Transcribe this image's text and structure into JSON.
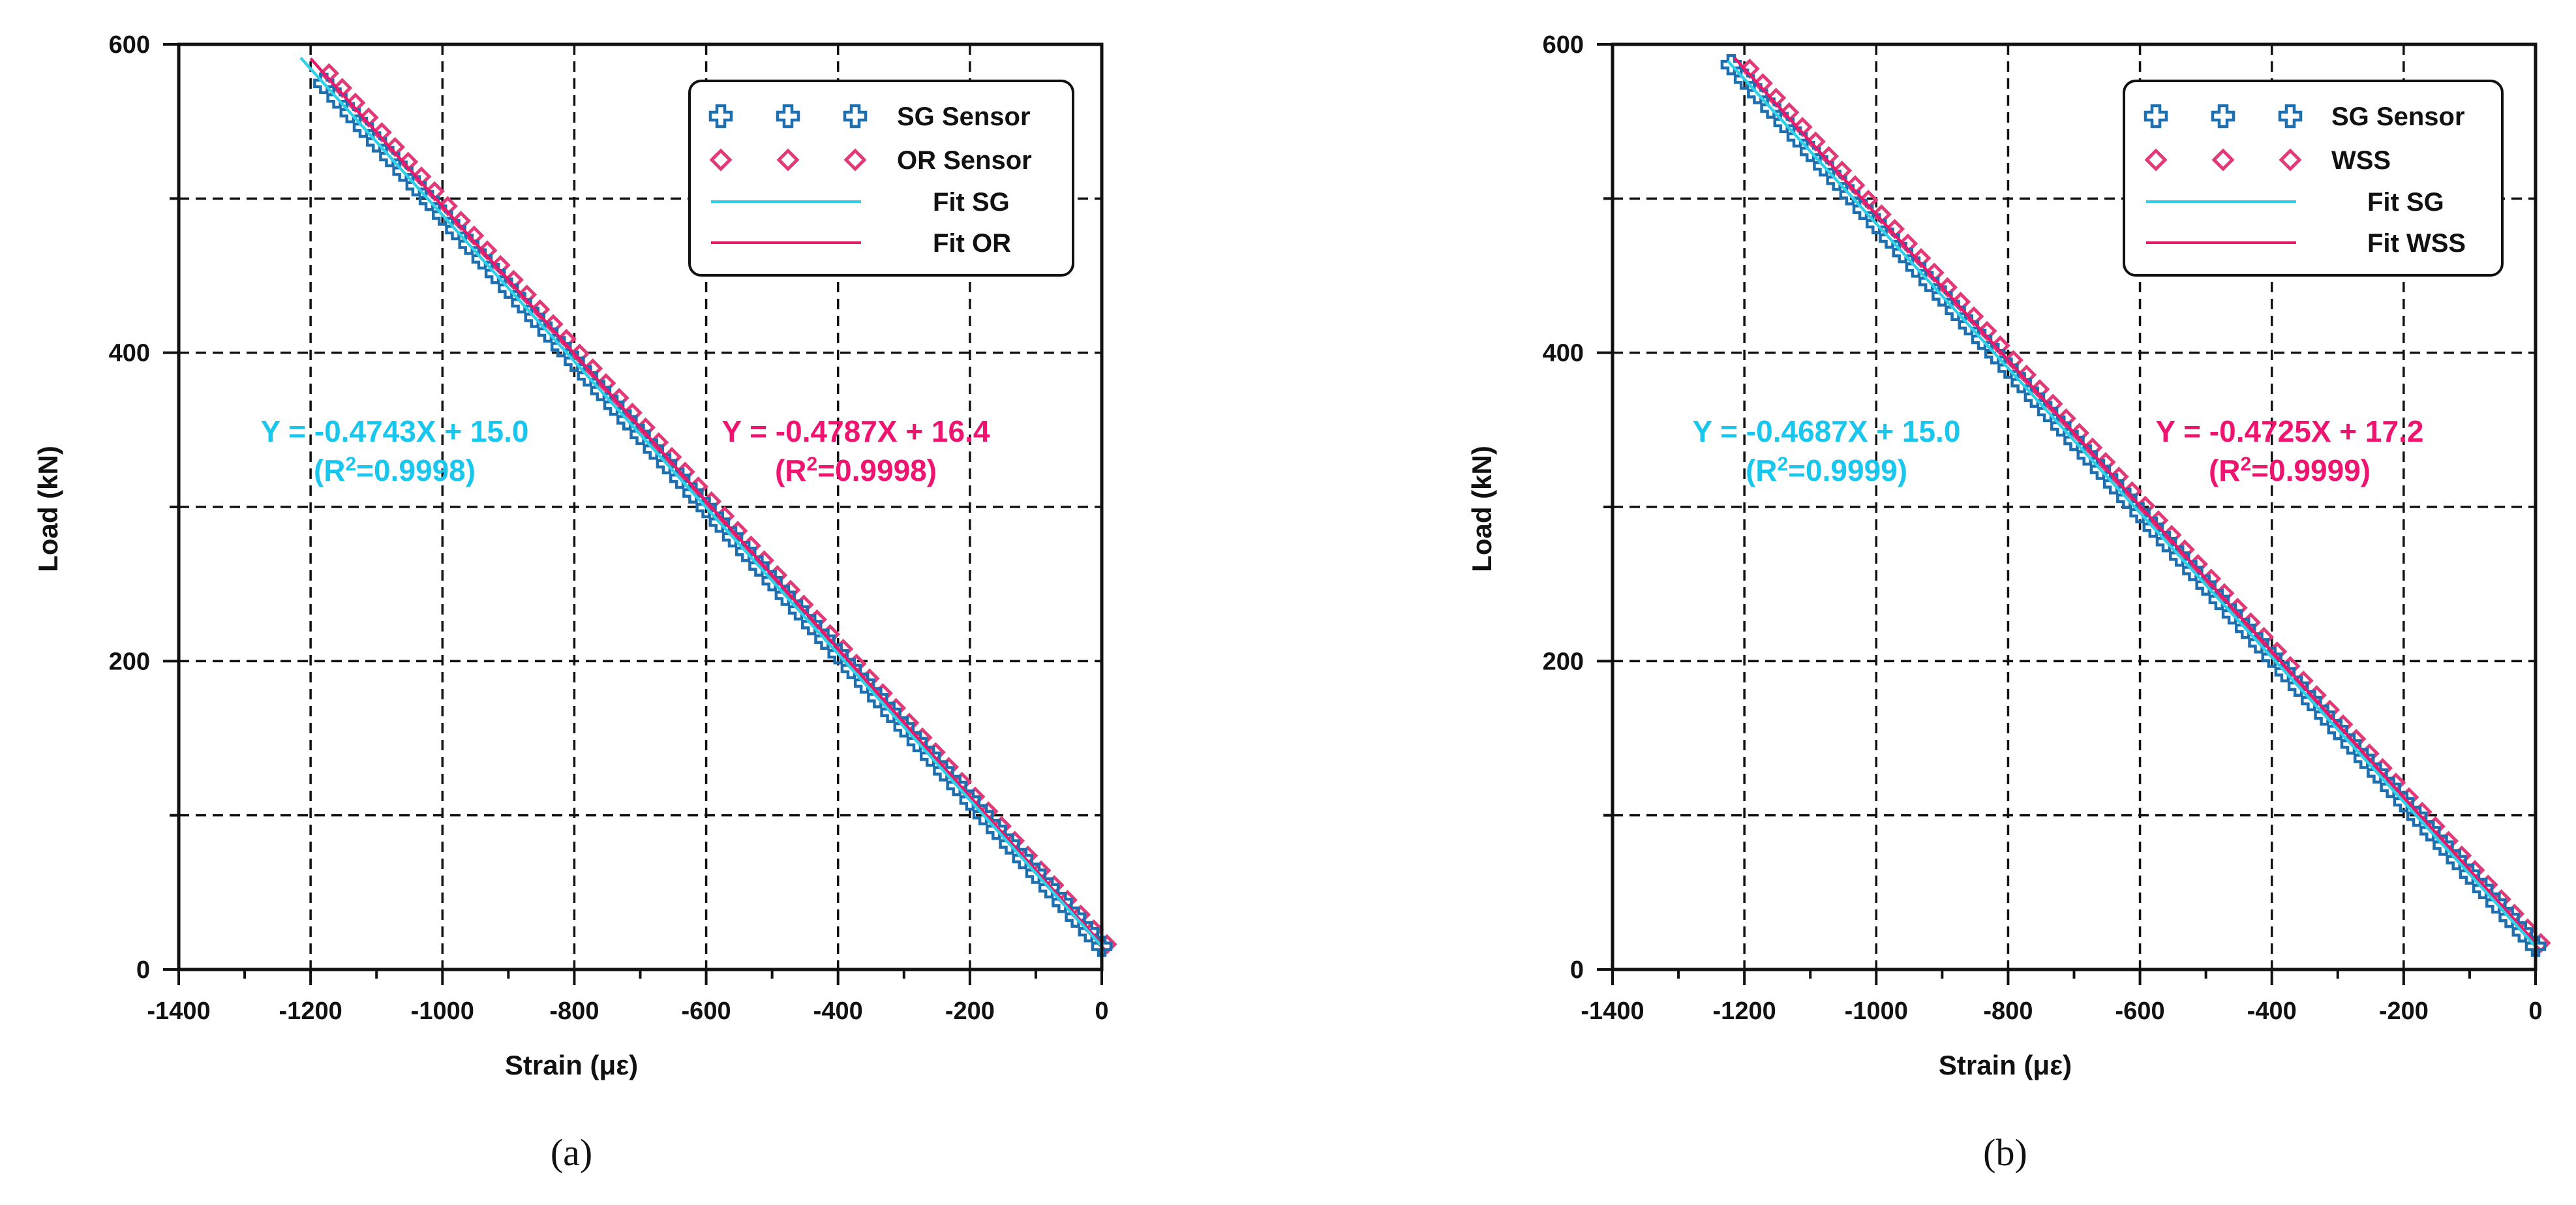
{
  "colors": {
    "sg": "#1e6fb0",
    "sg_fit": "#2fd0e8",
    "or": "#e23a78",
    "or_fit": "#e8186a",
    "eq_sg": "#18c6ee",
    "eq_or": "#ee1470"
  },
  "chart_data": [
    {
      "type": "scatter",
      "panel_label": "(a)",
      "xlabel": "Strain (με)",
      "ylabel": "Load (kN)",
      "xlim": [
        -1400,
        0
      ],
      "ylim": [
        0,
        600
      ],
      "x_ticks": [
        -1400,
        -1200,
        -1000,
        -800,
        -600,
        -400,
        -200,
        0
      ],
      "y_ticks": [
        0,
        200,
        400,
        600
      ],
      "grid": true,
      "legend_position": "top-right",
      "series": [
        {
          "name": "SG Sensor",
          "kind": "points",
          "marker": "plus",
          "slope": -0.4743,
          "intercept": 15.0,
          "x_start": -1180,
          "x_end": 0
        },
        {
          "name": "OR Sensor",
          "kind": "points",
          "marker": "diamond",
          "slope": -0.4787,
          "intercept": 16.4,
          "x_start": -1180,
          "x_end": 0
        },
        {
          "name": "Fit SG",
          "kind": "line",
          "slope": -0.4743,
          "intercept": 15.0,
          "x_start": -1215,
          "x_end": 0
        },
        {
          "name": "Fit OR",
          "kind": "line",
          "slope": -0.4787,
          "intercept": 16.4,
          "x_start": -1200,
          "x_end": 0
        }
      ],
      "annotations": [
        {
          "series": "SG",
          "equation": "Y = -0.4743X + 15.0",
          "r2_prefix": "(R",
          "r2_sup": "2",
          "r2_suffix": "=0.9998)"
        },
        {
          "series": "OR",
          "equation": "Y = -0.4787X + 16.4",
          "r2_prefix": "(R",
          "r2_sup": "2",
          "r2_suffix": "=0.9998)"
        }
      ]
    },
    {
      "type": "scatter",
      "panel_label": "(b)",
      "xlabel": "Strain (με)",
      "ylabel": "Load (kN)",
      "xlim": [
        -1400,
        0
      ],
      "ylim": [
        0,
        600
      ],
      "x_ticks": [
        -1400,
        -1200,
        -1000,
        -800,
        -600,
        -400,
        -200,
        0
      ],
      "y_ticks": [
        0,
        200,
        400,
        600
      ],
      "grid": true,
      "legend_position": "top-right",
      "series": [
        {
          "name": "SG Sensor",
          "kind": "points",
          "marker": "plus",
          "slope": -0.4687,
          "intercept": 15.0,
          "x_start": -1220,
          "x_end": 0
        },
        {
          "name": "WSS",
          "kind": "points",
          "marker": "diamond",
          "slope": -0.4725,
          "intercept": 17.2,
          "x_start": -1205,
          "x_end": 0
        },
        {
          "name": "Fit SG",
          "kind": "line",
          "slope": -0.4687,
          "intercept": 15.0,
          "x_start": -1225,
          "x_end": 0
        },
        {
          "name": "Fit WSS",
          "kind": "line",
          "slope": -0.4725,
          "intercept": 17.2,
          "x_start": -1215,
          "x_end": 0
        }
      ],
      "annotations": [
        {
          "series": "SG",
          "equation": "Y = -0.4687X + 15.0",
          "r2_prefix": "(R",
          "r2_sup": "2",
          "r2_suffix": "=0.9999)"
        },
        {
          "series": "WSS",
          "equation": "Y = -0.4725X + 17.2",
          "r2_prefix": "(R",
          "r2_sup": "2",
          "r2_suffix": "=0.9999)"
        }
      ]
    }
  ]
}
